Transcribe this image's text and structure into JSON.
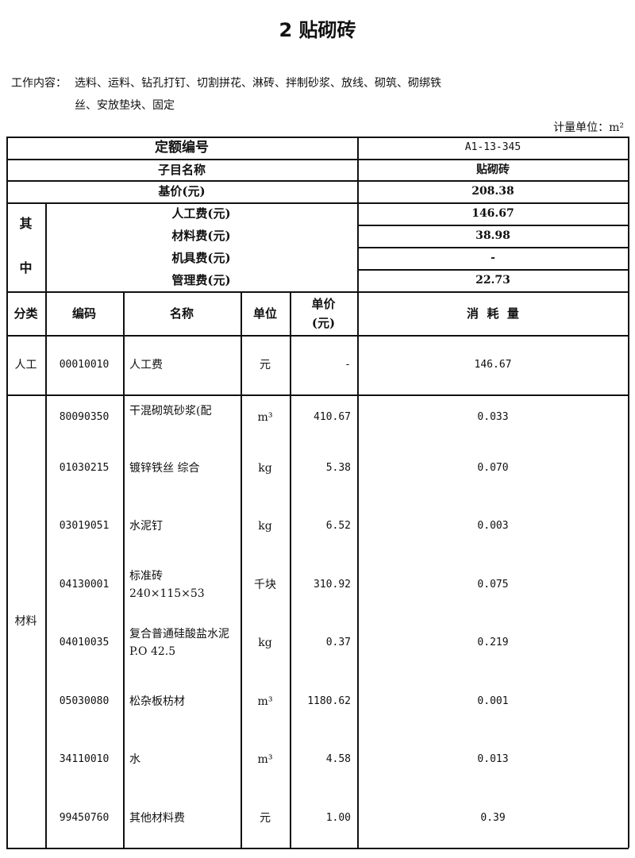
{
  "title": "2 贴砌砖",
  "work_content_label": "工作内容：",
  "work_content_line1": "选料、运料、钻孔打钉、切割拼花、淋砖、拌制砂浆、放线、砌筑、砌绑铁",
  "work_content_line2": "丝、安放垫块、固定",
  "unit_label": "计量单位：m²",
  "summary": {
    "quota_no_label": "定额编号",
    "quota_no": "A1-13-345",
    "item_name_label": "子目名称",
    "item_name": "贴砌砖",
    "base_price_label": "基价(元)",
    "base_price": "208.38",
    "of_which_1": "其",
    "of_which_2": "中",
    "labor_label": "人工费(元)",
    "labor": "146.67",
    "material_label": "材料费(元)",
    "material": "38.98",
    "machine_label": "机具费(元)",
    "machine": "-",
    "mgmt_label": "管理费(元)",
    "mgmt": "22.73"
  },
  "headers": {
    "category": "分类",
    "code": "编码",
    "name": "名称",
    "unit": "单位",
    "price_1": "单价",
    "price_2": "(元)",
    "consumption": "消  耗  量"
  },
  "labor_row": {
    "category": "人工",
    "code": "00010010",
    "name": "人工费",
    "unit": "元",
    "price": "-",
    "qty": "146.67"
  },
  "materials_category": "材料",
  "materials": [
    {
      "code": "80090350",
      "name": "干混砌筑砂浆(配",
      "unit": "m³",
      "price": "410.67",
      "qty": "0.033"
    },
    {
      "code": "01030215",
      "name": "镀锌铁丝 综合",
      "unit": "kg",
      "price": "5.38",
      "qty": "0.070"
    },
    {
      "code": "03019051",
      "name": "水泥钉",
      "unit": "kg",
      "price": "6.52",
      "qty": "0.003"
    },
    {
      "code": "04130001",
      "name": "标准砖 240×115×53",
      "unit": "千块",
      "price": "310.92",
      "qty": "0.075"
    },
    {
      "code": "04010035",
      "name": "复合普通硅酸盐水泥 P.O 42.5",
      "unit": "kg",
      "price": "0.37",
      "qty": "0.219"
    },
    {
      "code": "05030080",
      "name": "松杂板枋材",
      "unit": "m³",
      "price": "1180.62",
      "qty": "0.001"
    },
    {
      "code": "34110010",
      "name": "水",
      "unit": "m³",
      "price": "4.58",
      "qty": "0.013"
    },
    {
      "code": "99450760",
      "name": "其他材料费",
      "unit": "元",
      "price": "1.00",
      "qty": "0.39"
    }
  ]
}
